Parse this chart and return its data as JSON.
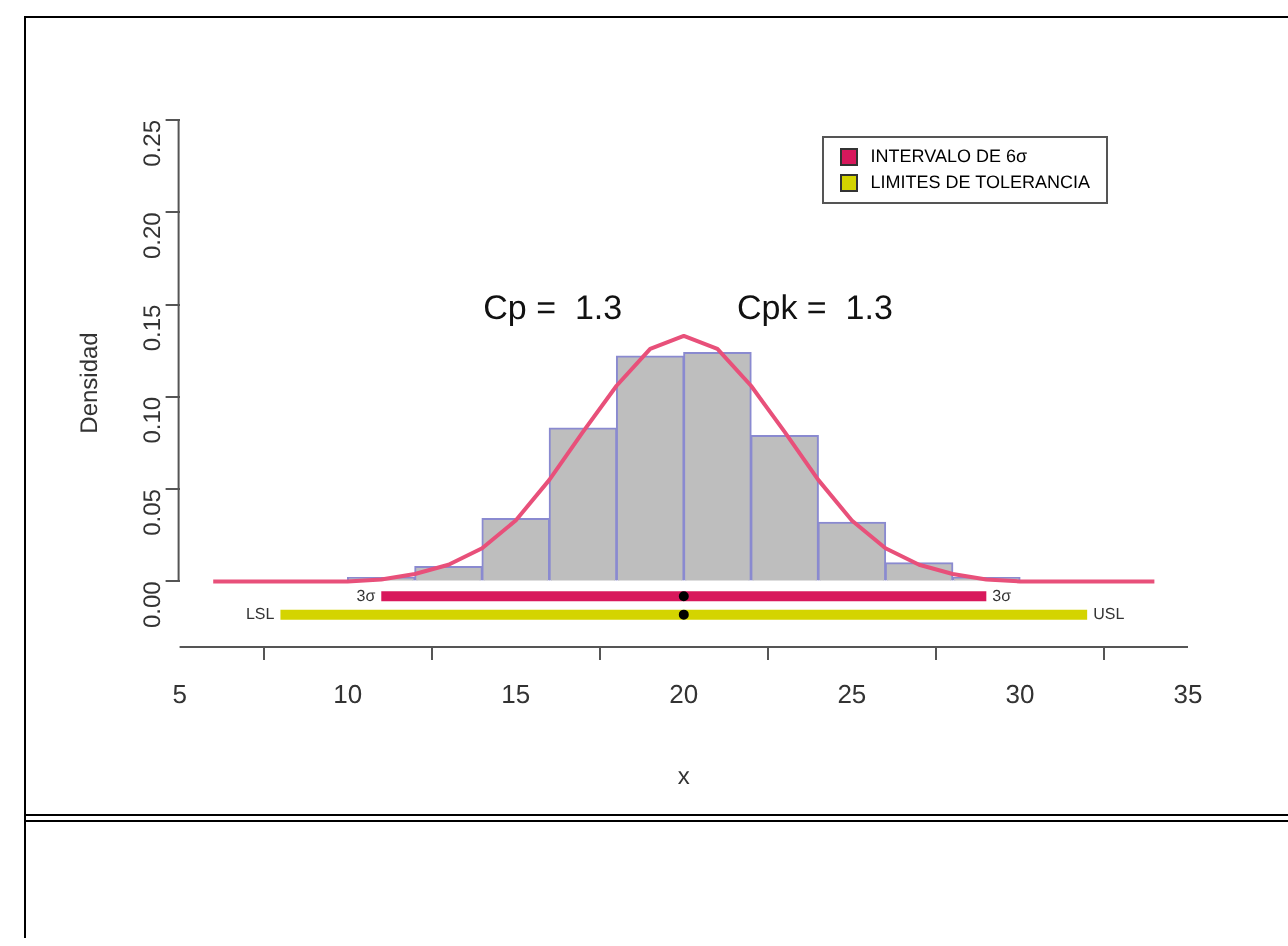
{
  "chart_data": {
    "type": "histogram",
    "xlabel": "x",
    "ylabel": "Densidad",
    "bins": [
      10,
      12,
      14,
      16,
      18,
      20,
      22,
      24,
      26,
      28,
      30
    ],
    "values": [
      0.002,
      0.008,
      0.034,
      0.083,
      0.122,
      0.124,
      0.079,
      0.032,
      0.01,
      0.002
    ],
    "color": "#bebebe",
    "series": [
      {
        "type": "line",
        "color": "#e8507a",
        "x": [
          6,
          10,
          11,
          12,
          13,
          14,
          15,
          16,
          17,
          18,
          19,
          20,
          21,
          22,
          23,
          24,
          25,
          26,
          27,
          28,
          29,
          30,
          34
        ],
        "values": [
          0,
          0,
          0.001,
          0.004,
          0.009,
          0.018,
          0.033,
          0.055,
          0.081,
          0.106,
          0.126,
          0.133,
          0.126,
          0.106,
          0.081,
          0.055,
          0.033,
          0.018,
          0.009,
          0.004,
          0.001,
          0,
          0
        ]
      },
      {
        "type": "line",
        "name": "INTERVALO DE 6σ",
        "color": "#d8185c",
        "x": [
          11,
          29
        ],
        "values": [
          -0.008,
          -0.008
        ]
      },
      {
        "type": "line",
        "name": "LIMITES DE TOLERANCIA",
        "color": "#d4d400",
        "x": [
          8,
          32
        ],
        "values": [
          -0.018,
          -0.018
        ]
      },
      {
        "type": "scatter",
        "color": "#000000",
        "marker": "circle",
        "x": [
          20,
          20
        ],
        "values": [
          -0.008,
          -0.018
        ]
      }
    ],
    "annotations": [
      {
        "text": "3σ",
        "x": 11,
        "y": -0.008
      },
      {
        "text": "3σ",
        "x": 29,
        "y": -0.008
      },
      {
        "text": "LSL",
        "x": 8,
        "y": -0.018
      },
      {
        "text": "USL",
        "x": 32,
        "y": -0.018
      },
      "Cp =  1.3",
      "Cpk =  1.3"
    ],
    "xlim": [
      5,
      35
    ],
    "xticks": [
      5,
      10,
      15,
      20,
      25,
      30,
      35
    ],
    "ylim": [
      -0.035,
      0.25
    ],
    "yticks": [
      {
        "value": 0,
        "label": "0.00"
      },
      {
        "value": 0.05,
        "label": "0.05"
      },
      {
        "value": 0.1,
        "label": "0.10"
      },
      {
        "value": 0.15,
        "label": "0.15"
      },
      {
        "value": 0.2,
        "label": "0.20"
      },
      {
        "value": 0.25,
        "label": "0.25"
      }
    ],
    "grid": false,
    "legend": "top right"
  }
}
